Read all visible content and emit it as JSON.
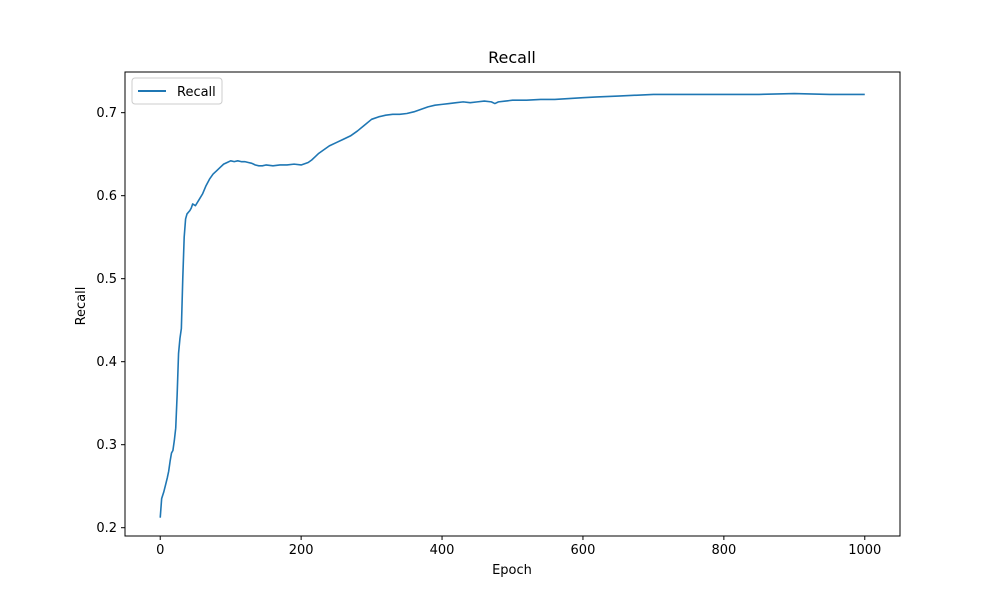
{
  "chart_data": {
    "type": "line",
    "title": "Recall",
    "xlabel": "Epoch",
    "ylabel": "Recall",
    "xlim": [
      -50,
      1050
    ],
    "ylim": [
      0.19,
      0.749
    ],
    "xticks": [
      0,
      200,
      400,
      600,
      800,
      1000
    ],
    "yticks": [
      0.2,
      0.3,
      0.4,
      0.5,
      0.6,
      0.7
    ],
    "grid": false,
    "legend_position": "top-left",
    "color": "#1f77b4",
    "series": [
      {
        "name": "Recall",
        "x": [
          0,
          2,
          5,
          8,
          10,
          12,
          14,
          16,
          18,
          20,
          22,
          24,
          26,
          28,
          30,
          32,
          34,
          36,
          38,
          40,
          42,
          44,
          46,
          50,
          55,
          60,
          65,
          70,
          75,
          80,
          85,
          90,
          95,
          100,
          105,
          110,
          115,
          120,
          125,
          130,
          135,
          140,
          145,
          150,
          160,
          170,
          180,
          190,
          200,
          210,
          215,
          220,
          225,
          230,
          240,
          250,
          260,
          270,
          280,
          290,
          300,
          310,
          320,
          330,
          340,
          350,
          360,
          370,
          380,
          390,
          400,
          410,
          420,
          430,
          440,
          450,
          460,
          470,
          475,
          480,
          490,
          500,
          520,
          540,
          560,
          580,
          600,
          620,
          650,
          700,
          750,
          800,
          850,
          900,
          950,
          1000
        ],
        "y": [
          0.212,
          0.235,
          0.243,
          0.253,
          0.26,
          0.268,
          0.28,
          0.29,
          0.293,
          0.305,
          0.32,
          0.36,
          0.41,
          0.428,
          0.44,
          0.5,
          0.55,
          0.572,
          0.578,
          0.58,
          0.582,
          0.585,
          0.59,
          0.588,
          0.595,
          0.602,
          0.612,
          0.62,
          0.626,
          0.63,
          0.634,
          0.638,
          0.64,
          0.642,
          0.641,
          0.642,
          0.641,
          0.641,
          0.64,
          0.639,
          0.637,
          0.636,
          0.636,
          0.637,
          0.636,
          0.637,
          0.637,
          0.638,
          0.637,
          0.64,
          0.643,
          0.647,
          0.651,
          0.654,
          0.66,
          0.664,
          0.668,
          0.672,
          0.678,
          0.685,
          0.692,
          0.695,
          0.697,
          0.698,
          0.698,
          0.699,
          0.701,
          0.704,
          0.707,
          0.709,
          0.71,
          0.711,
          0.712,
          0.713,
          0.712,
          0.713,
          0.714,
          0.713,
          0.711,
          0.713,
          0.714,
          0.715,
          0.715,
          0.716,
          0.716,
          0.717,
          0.718,
          0.719,
          0.72,
          0.722,
          0.722,
          0.722,
          0.722,
          0.723,
          0.722,
          0.722
        ]
      }
    ]
  }
}
